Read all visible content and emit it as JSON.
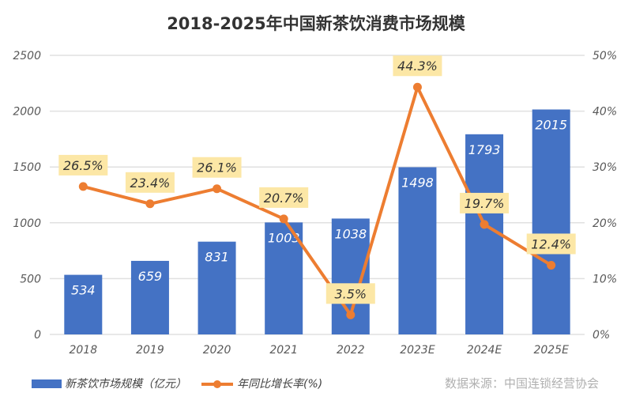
{
  "chart_data": {
    "type": "bar+line",
    "title": "2018-2025年中国新茶饮消费市场规模",
    "categories": [
      "2018",
      "2019",
      "2020",
      "2021",
      "2022",
      "2023E",
      "2024E",
      "2025E"
    ],
    "series": [
      {
        "name": "新茶饮市场规模（亿元）",
        "type": "bar",
        "axis": "left",
        "color": "#4472C4",
        "values": [
          534,
          659,
          831,
          1003,
          1038,
          1498,
          1793,
          2015
        ]
      },
      {
        "name": "年同比增长率(%)",
        "type": "line",
        "axis": "right",
        "color": "#ED7D31",
        "values": [
          26.5,
          23.4,
          26.1,
          20.7,
          3.5,
          44.3,
          19.7,
          12.4
        ],
        "labels": [
          "26.5%",
          "23.4%",
          "26.1%",
          "20.7%",
          "3.5%",
          "44.3%",
          "19.7%",
          "12.4%"
        ]
      }
    ],
    "ylim": [
      0,
      2500
    ],
    "yticks": [
      "0",
      "500",
      "1000",
      "1500",
      "2000",
      "2500"
    ],
    "y2lim": [
      0,
      50
    ],
    "y2ticks": [
      "0%",
      "10%",
      "20%",
      "30%",
      "40%",
      "50%"
    ],
    "grid": true,
    "legend": "bottom-left",
    "label_bg": "#FCE7A6"
  },
  "source": "数据来源：中国连锁经营协会"
}
